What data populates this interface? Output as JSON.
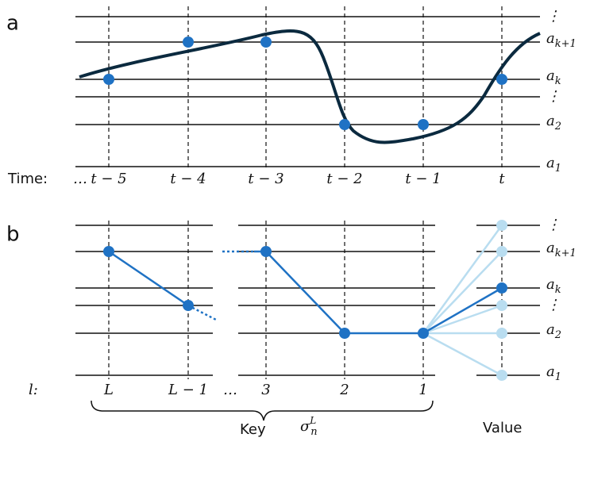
{
  "panel_a": {
    "label": "a",
    "time_label": "Time:",
    "times": [
      "…",
      "t − 5",
      "t − 4",
      "t − 3",
      "t − 2",
      "t − 1",
      "t"
    ],
    "levels": [
      "⋮",
      {
        "base": "a",
        "sub": "k+1"
      },
      {
        "base": "a",
        "sub": "k"
      },
      "⋮",
      {
        "base": "a",
        "sub": "2"
      },
      {
        "base": "a",
        "sub": "1"
      }
    ]
  },
  "panel_b": {
    "label": "b",
    "index_label": "l:",
    "indices": [
      "L",
      "L − 1",
      "…",
      "3",
      "2",
      "1"
    ],
    "levels": [
      "⋮",
      {
        "base": "a",
        "sub": "k+1"
      },
      {
        "base": "a",
        "sub": "k"
      },
      "⋮",
      {
        "base": "a",
        "sub": "2"
      },
      {
        "base": "a",
        "sub": "1"
      }
    ],
    "key_label": "Key",
    "key_symbol": {
      "base": "σ",
      "sub": "n",
      "sup": "L"
    },
    "value_label": "Value"
  }
}
